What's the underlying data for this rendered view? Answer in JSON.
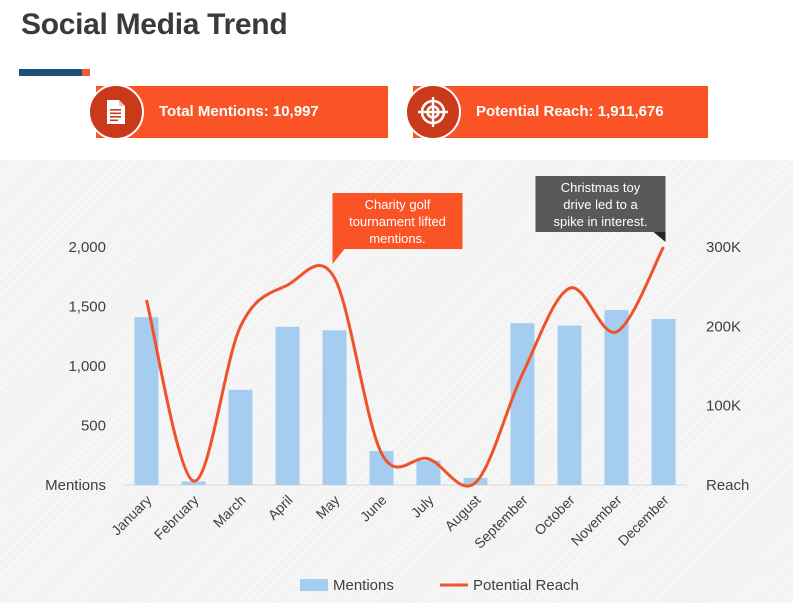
{
  "header": {
    "title": "Social Media Trend"
  },
  "kpis": [
    {
      "label": "Total Mentions: 10,997",
      "icon": "document-icon"
    },
    {
      "label": "Potential Reach: 1,911,676",
      "icon": "target-icon"
    }
  ],
  "colors": {
    "accent": "#fa5426",
    "accent_dark": "#c9391a",
    "navy": "#1f4e79",
    "bar": "#a5cdf0",
    "line": "#f0522a",
    "callout_gray": "#595959"
  },
  "chart_data": {
    "type": "bar",
    "categories": [
      "January",
      "February",
      "March",
      "April",
      "May",
      "June",
      "July",
      "August",
      "September",
      "October",
      "November",
      "December"
    ],
    "series": [
      {
        "name": "Mentions",
        "type": "bar",
        "axis": "left",
        "values": [
          1410,
          30,
          800,
          1330,
          1300,
          285,
          205,
          60,
          1360,
          1340,
          1470,
          1395
        ]
      },
      {
        "name": "Potential Reach",
        "type": "line",
        "axis": "right",
        "smooth": true,
        "values": [
          233000,
          5000,
          200000,
          252000,
          261000,
          40000,
          33000,
          3000,
          140000,
          248000,
          193000,
          300000
        ]
      }
    ],
    "y_left": {
      "label": "Mentions",
      "ylim": [
        0,
        2000
      ],
      "ticks": [
        {
          "value": 500,
          "label": "500"
        },
        {
          "value": 1000,
          "label": "1,000"
        },
        {
          "value": 1500,
          "label": "1,500"
        },
        {
          "value": 2000,
          "label": "2,000"
        }
      ]
    },
    "y_right": {
      "label": "Reach",
      "ylim": [
        0,
        300000
      ],
      "ticks": [
        {
          "value": 100000,
          "label": "100K"
        },
        {
          "value": 200000,
          "label": "200K"
        },
        {
          "value": 300000,
          "label": "300K"
        }
      ]
    },
    "grid": false,
    "legend": {
      "position": "bottom"
    },
    "annotations": [
      {
        "month": "May",
        "lines": [
          "Charity golf",
          "tournament lifted",
          "mentions."
        ],
        "style": "orange"
      },
      {
        "month": "December",
        "lines": [
          "Christmas toy",
          "drive led to a",
          "spike in interest."
        ],
        "style": "gray"
      }
    ]
  }
}
